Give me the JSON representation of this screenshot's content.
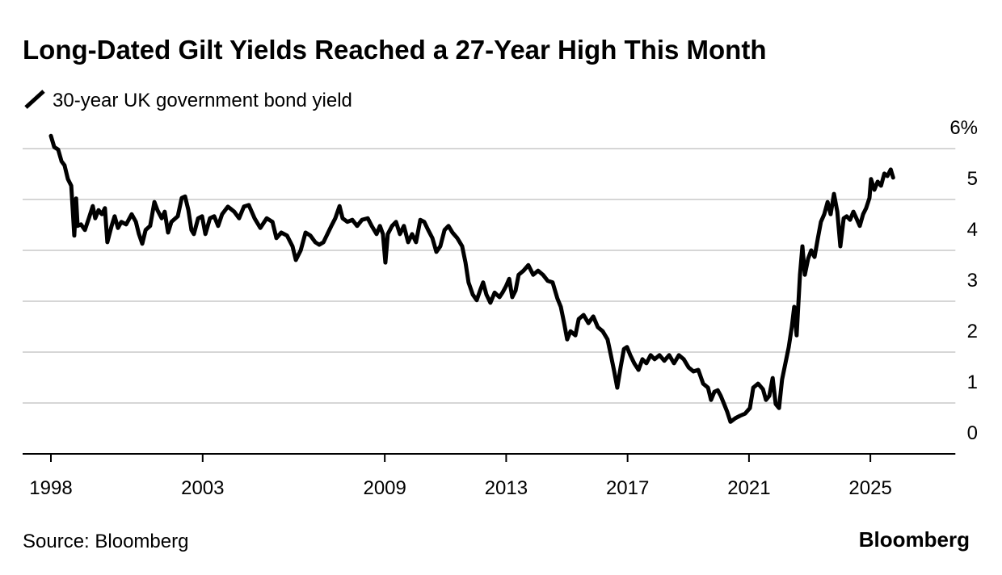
{
  "chart_data": {
    "type": "line",
    "title": "Long-Dated Gilt Yields Reached a 27-Year High This Month",
    "source": "Source: Bloomberg",
    "brand": "Bloomberg",
    "grid": true,
    "xlim": [
      1997,
      2027.8
    ],
    "xticks": [
      1998,
      2003,
      2009,
      2013,
      2017,
      2021,
      2025
    ],
    "ylim": [
      0,
      6.5
    ],
    "yticks": [
      0,
      1,
      2,
      3,
      4,
      5,
      {
        "value": 6,
        "label": "6%"
      }
    ],
    "series": [
      {
        "name": "30-year UK government bond yield",
        "color": "#000000",
        "x": [
          1998.0,
          1998.11,
          1998.24,
          1998.35,
          1998.45,
          1998.56,
          1998.67,
          1998.72,
          1998.77,
          1998.83,
          1998.88,
          1998.99,
          1999.12,
          1999.25,
          1999.38,
          1999.46,
          1999.57,
          1999.68,
          1999.78,
          1999.86,
          2000.0,
          2000.1,
          2000.21,
          2000.32,
          2000.48,
          2000.66,
          2000.8,
          2000.9,
          2001.01,
          2001.12,
          2001.27,
          2001.41,
          2001.51,
          2001.65,
          2001.75,
          2001.86,
          2001.97,
          2002.18,
          2002.31,
          2002.42,
          2002.53,
          2002.63,
          2002.71,
          2002.85,
          2002.98,
          2003.09,
          2003.24,
          2003.38,
          2003.51,
          2003.64,
          2003.83,
          2004.04,
          2004.2,
          2004.36,
          2004.52,
          2004.71,
          2004.9,
          2005.11,
          2005.3,
          2005.43,
          2005.59,
          2005.78,
          2005.96,
          2006.07,
          2006.23,
          2006.39,
          2006.55,
          2006.71,
          2006.84,
          2006.98,
          2007.11,
          2007.24,
          2007.37,
          2007.51,
          2007.61,
          2007.77,
          2007.93,
          2008.09,
          2008.25,
          2008.44,
          2008.57,
          2008.73,
          2008.84,
          2008.94,
          2009.02,
          2009.1,
          2009.24,
          2009.37,
          2009.5,
          2009.63,
          2009.77,
          2009.9,
          2010.03,
          2010.17,
          2010.3,
          2010.43,
          2010.57,
          2010.7,
          2010.83,
          2010.97,
          2011.1,
          2011.23,
          2011.39,
          2011.55,
          2011.66,
          2011.76,
          2011.9,
          2012.03,
          2012.14,
          2012.24,
          2012.35,
          2012.48,
          2012.62,
          2012.78,
          2012.88,
          2012.99,
          2013.1,
          2013.2,
          2013.31,
          2013.41,
          2013.57,
          2013.73,
          2013.89,
          2014.05,
          2014.21,
          2014.37,
          2014.53,
          2014.69,
          2014.8,
          2014.91,
          2015.01,
          2015.12,
          2015.28,
          2015.39,
          2015.55,
          2015.71,
          2015.87,
          2016.02,
          2016.18,
          2016.34,
          2016.45,
          2016.56,
          2016.66,
          2016.77,
          2016.88,
          2016.98,
          2017.09,
          2017.22,
          2017.36,
          2017.49,
          2017.62,
          2017.76,
          2017.89,
          2018.05,
          2018.21,
          2018.37,
          2018.53,
          2018.69,
          2018.85,
          2019.01,
          2019.17,
          2019.33,
          2019.49,
          2019.65,
          2019.75,
          2019.86,
          2019.97,
          2020.07,
          2020.18,
          2020.28,
          2020.39,
          2020.55,
          2020.71,
          2020.87,
          2021.03,
          2021.14,
          2021.3,
          2021.46,
          2021.56,
          2021.67,
          2021.78,
          2021.88,
          2021.99,
          2022.09,
          2022.2,
          2022.31,
          2022.41,
          2022.49,
          2022.57,
          2022.68,
          2022.76,
          2022.84,
          2022.95,
          2023.05,
          2023.16,
          2023.27,
          2023.37,
          2023.48,
          2023.59,
          2023.69,
          2023.8,
          2023.91,
          2024.01,
          2024.12,
          2024.22,
          2024.33,
          2024.44,
          2024.54,
          2024.65,
          2024.76,
          2024.86,
          2024.97,
          2025.02,
          2025.13,
          2025.24,
          2025.35,
          2025.46,
          2025.56,
          2025.67,
          2025.75
        ],
        "values": [
          6.25,
          6.03,
          5.98,
          5.75,
          5.67,
          5.4,
          5.27,
          4.79,
          4.29,
          5.02,
          4.48,
          4.51,
          4.4,
          4.63,
          4.87,
          4.63,
          4.79,
          4.71,
          4.83,
          4.16,
          4.48,
          4.67,
          4.44,
          4.56,
          4.51,
          4.71,
          4.56,
          4.32,
          4.13,
          4.4,
          4.48,
          4.95,
          4.79,
          4.63,
          4.76,
          4.35,
          4.56,
          4.67,
          5.03,
          5.06,
          4.79,
          4.4,
          4.32,
          4.63,
          4.67,
          4.32,
          4.63,
          4.67,
          4.48,
          4.71,
          4.86,
          4.76,
          4.63,
          4.86,
          4.89,
          4.63,
          4.44,
          4.63,
          4.56,
          4.24,
          4.35,
          4.29,
          4.08,
          3.81,
          4.0,
          4.35,
          4.29,
          4.16,
          4.11,
          4.16,
          4.32,
          4.48,
          4.63,
          4.87,
          4.63,
          4.56,
          4.6,
          4.48,
          4.6,
          4.63,
          4.48,
          4.32,
          4.48,
          4.32,
          3.76,
          4.32,
          4.48,
          4.56,
          4.32,
          4.48,
          4.16,
          4.32,
          4.16,
          4.6,
          4.56,
          4.4,
          4.24,
          3.97,
          4.08,
          4.4,
          4.48,
          4.35,
          4.24,
          4.08,
          3.76,
          3.37,
          3.13,
          3.02,
          3.21,
          3.37,
          3.13,
          2.97,
          3.17,
          3.08,
          3.17,
          3.29,
          3.44,
          3.08,
          3.21,
          3.52,
          3.6,
          3.71,
          3.52,
          3.6,
          3.52,
          3.4,
          3.37,
          3.05,
          2.89,
          2.57,
          2.25,
          2.41,
          2.33,
          2.65,
          2.73,
          2.57,
          2.7,
          2.49,
          2.41,
          2.25,
          1.94,
          1.62,
          1.3,
          1.7,
          2.06,
          2.1,
          1.94,
          1.78,
          1.65,
          1.86,
          1.78,
          1.94,
          1.86,
          1.94,
          1.83,
          1.94,
          1.78,
          1.94,
          1.86,
          1.7,
          1.62,
          1.65,
          1.38,
          1.3,
          1.06,
          1.22,
          1.25,
          1.14,
          0.98,
          0.83,
          0.63,
          0.7,
          0.75,
          0.79,
          0.9,
          1.3,
          1.38,
          1.27,
          1.06,
          1.14,
          1.49,
          0.98,
          0.9,
          1.46,
          1.78,
          2.1,
          2.49,
          2.89,
          2.33,
          3.52,
          4.08,
          3.52,
          3.84,
          4.0,
          3.87,
          4.24,
          4.56,
          4.71,
          4.95,
          4.71,
          5.11,
          4.76,
          4.08,
          4.63,
          4.67,
          4.6,
          4.76,
          4.63,
          4.48,
          4.71,
          4.83,
          5.03,
          5.4,
          5.19,
          5.35,
          5.27,
          5.51,
          5.46,
          5.59,
          5.43
        ]
      }
    ]
  }
}
